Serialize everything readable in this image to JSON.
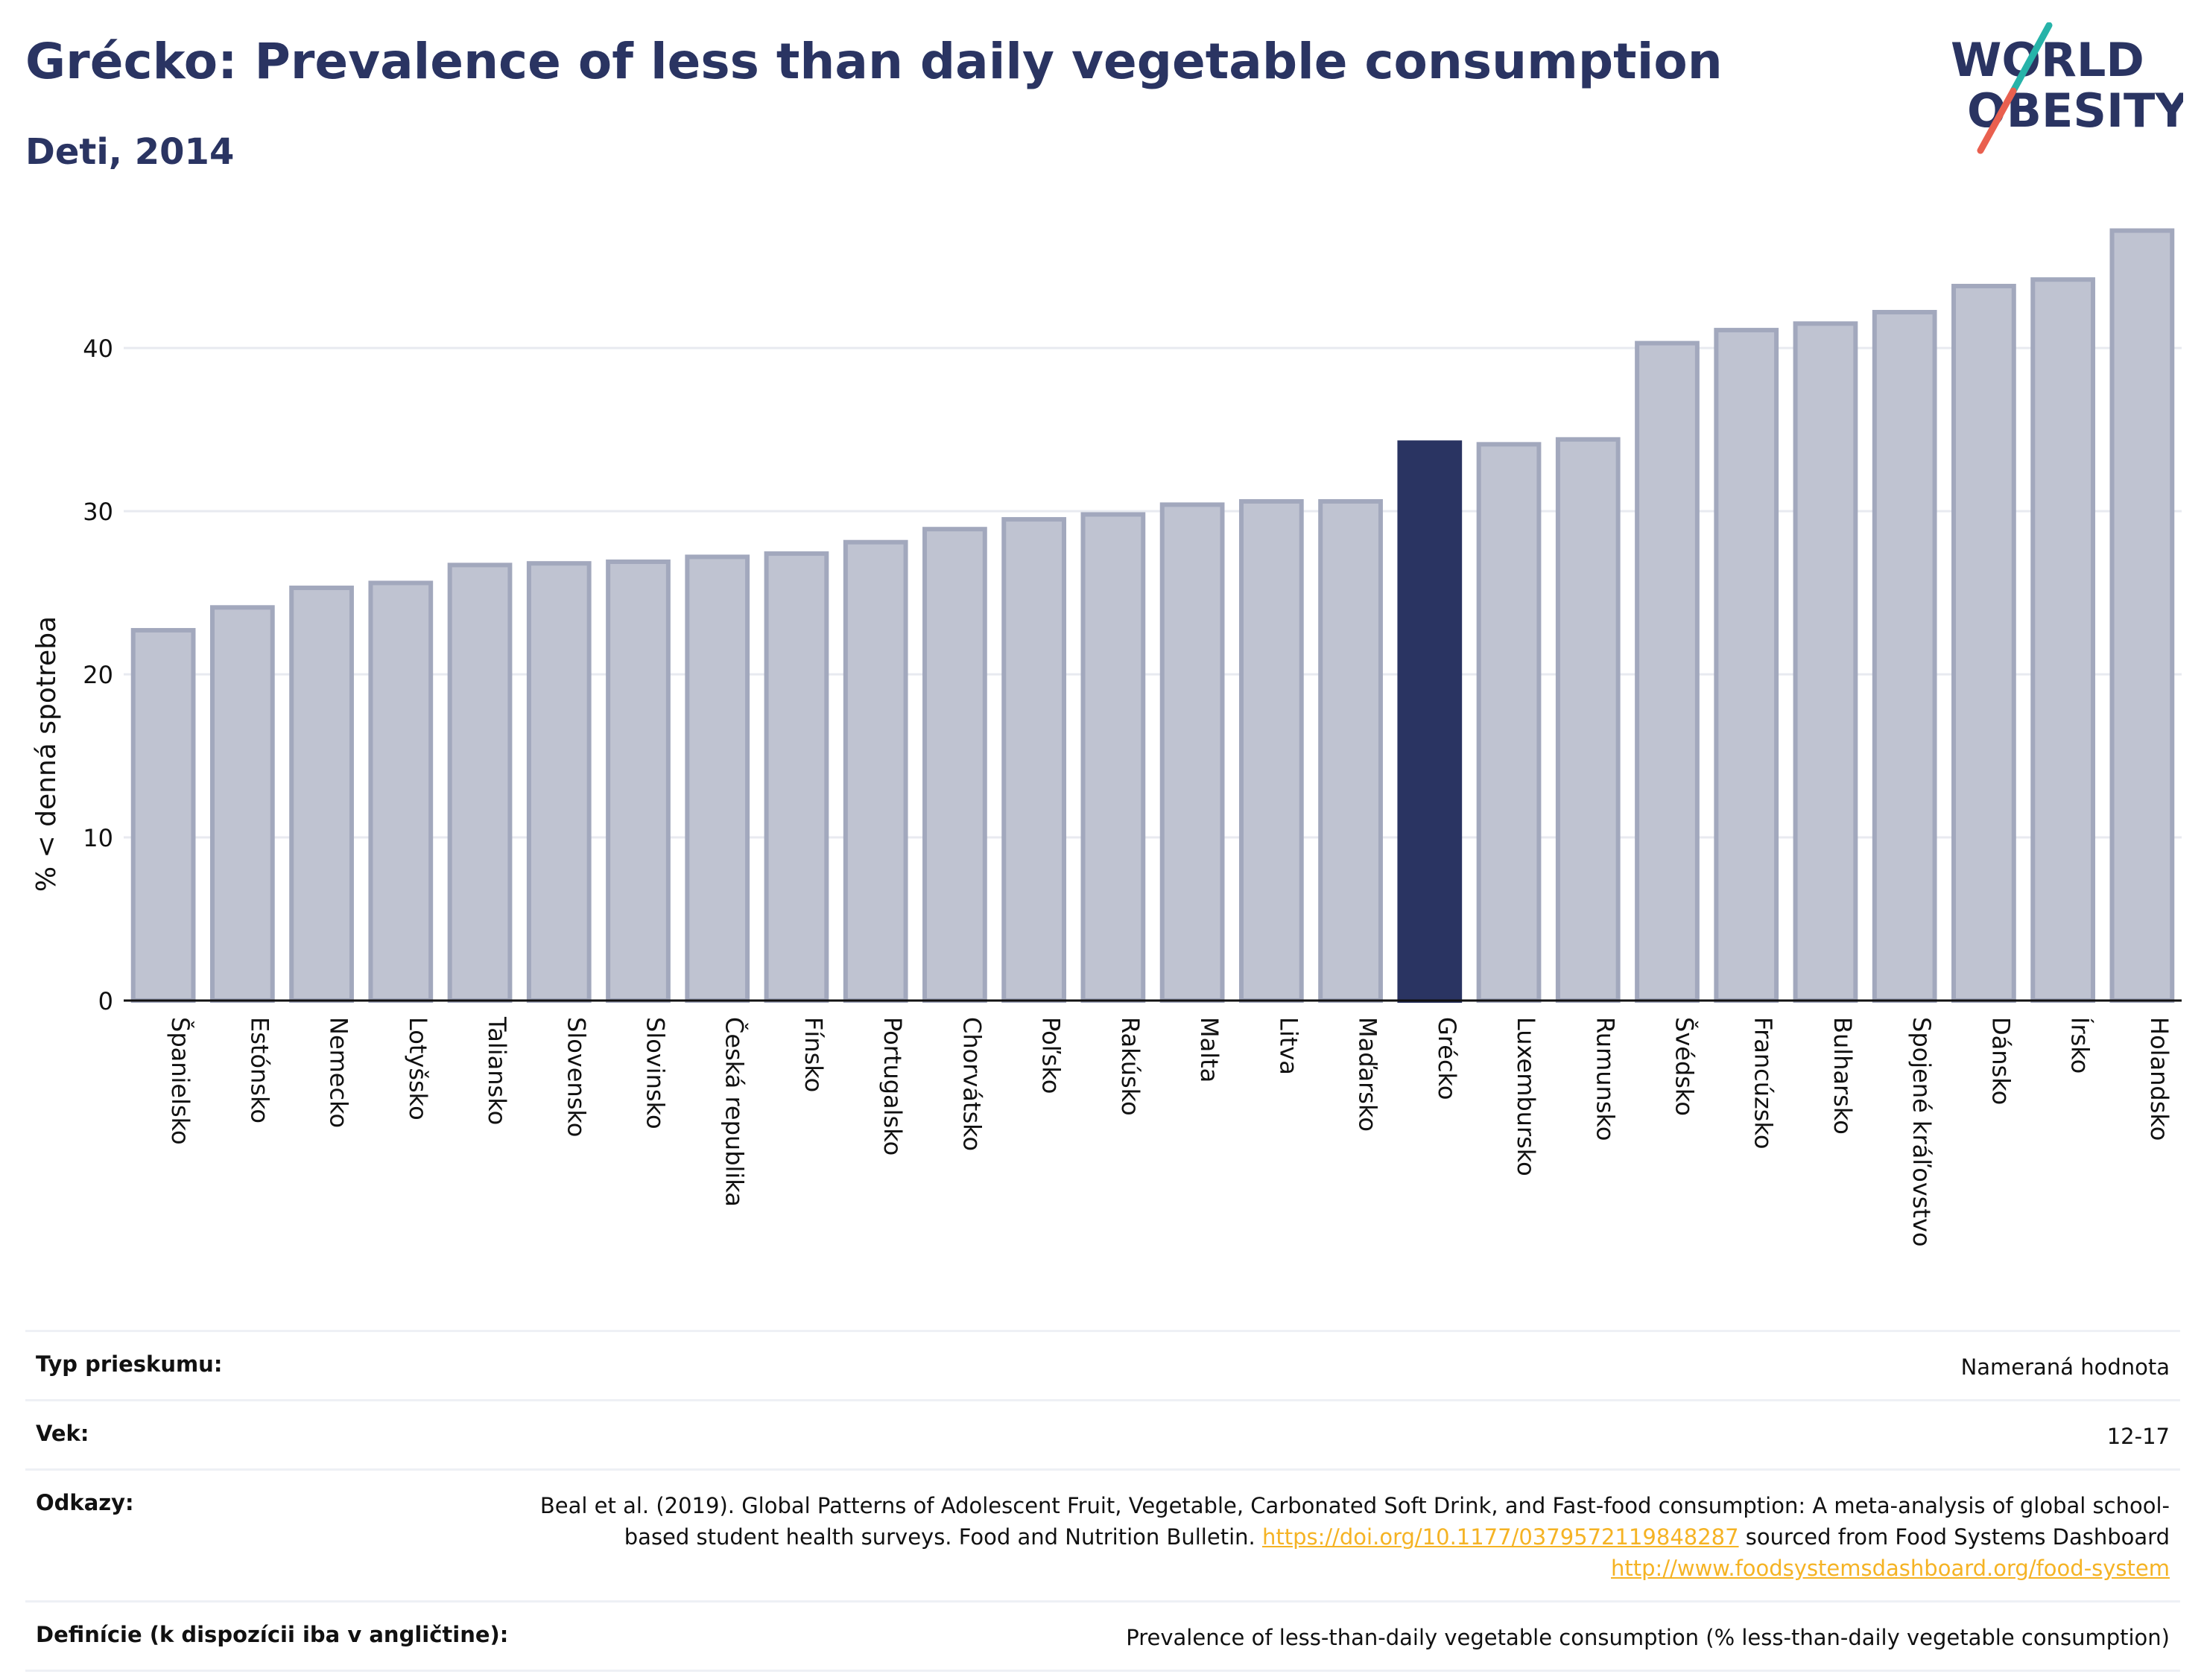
{
  "header": {
    "title": "Grécko: Prevalence of less than daily vegetable consumption",
    "subtitle": "Deti, 2014"
  },
  "logo": {
    "line1": "WORLD",
    "line2": "OBESITY"
  },
  "colors": {
    "bar": "#bfc3d1",
    "bar_edge": "#a2a8bd",
    "highlight": "#2a3462",
    "text": "#2a3462"
  },
  "chart_data": {
    "type": "bar",
    "ylabel": "% < denná spotreba",
    "ylim": [
      0,
      48
    ],
    "yticks": [
      0,
      10,
      20,
      30,
      40
    ],
    "grid": true,
    "highlight": "Grécko",
    "categories": [
      "Španielsko",
      "Estónsko",
      "Nemecko",
      "Lotyšsko",
      "Taliansko",
      "Slovensko",
      "Slovinsko",
      "Česká republika",
      "Fínsko",
      "Portugalsko",
      "Chorvátsko",
      "Poľsko",
      "Rakúsko",
      "Malta",
      "Litva",
      "Maďarsko",
      "Grécko",
      "Luxembursko",
      "Rumunsko",
      "Švédsko",
      "Francúzsko",
      "Bulharsko",
      "Spojené kráľovstvo",
      "Dánsko",
      "Írsko",
      "Holandsko"
    ],
    "values": [
      22.7,
      24.1,
      25.3,
      25.6,
      26.7,
      26.8,
      26.9,
      27.2,
      27.4,
      28.1,
      28.9,
      29.5,
      29.8,
      30.4,
      30.6,
      30.6,
      34.2,
      34.1,
      34.4,
      40.3,
      41.1,
      41.5,
      42.2,
      43.8,
      44.2,
      47.2
    ]
  },
  "meta": {
    "survey_label": "Typ prieskumu:",
    "survey_value": "Nameraná hodnota",
    "age_label": "Vek:",
    "age_value": "12-17",
    "refs_label": "Odkazy:",
    "refs_text1": "Beal et al. (2019). Global Patterns of Adolescent Fruit, Vegetable, Carbonated Soft Drink, and Fast-food consumption: A meta-analysis of global school-based student health surveys. Food and Nutrition Bulletin.",
    "refs_link1": "https://doi.org/10.1177/0379572119848287",
    "refs_text2": "sourced from Food Systems Dashboard",
    "refs_link2": "http://www.foodsystemsdashboard.org/food-system",
    "def_label": "Definície (k dispozícii iba v angličtine):",
    "def_value": "Prevalence of less-than-daily vegetable consumption (% less-than-daily vegetable consumption)"
  }
}
